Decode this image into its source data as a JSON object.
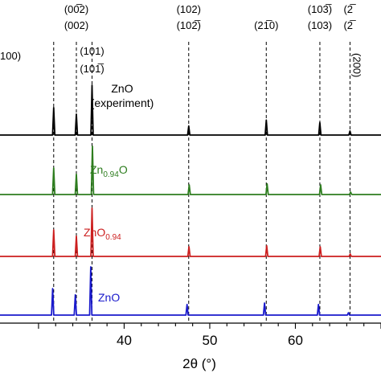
{
  "chart_data": {
    "type": "line",
    "xlabel": "2θ (°)",
    "xlim": [
      25.5,
      70
    ],
    "x_ticks": [
      "40",
      "50",
      "60"
    ],
    "reference_lines": [
      31.77,
      34.42,
      36.25,
      47.54,
      56.6,
      62.86,
      66.38
    ],
    "peak_labels": [
      {
        "x": 34.42,
        "lines": [
          "(00̅2)",
          "(002)"
        ]
      },
      {
        "x": 36.25,
        "lines": [
          "(101)",
          "(101̅)"
        ]
      },
      {
        "x": 47.54,
        "lines": [
          "(102)",
          "(102̅)"
        ]
      },
      {
        "x": 56.6,
        "lines": [
          "(21̅0)"
        ]
      },
      {
        "x": 62.86,
        "lines": [
          "(103̅)",
          "(103)"
        ]
      },
      {
        "x": 66.38,
        "lines": [
          "(2̅",
          "(2̅"
        ]
      },
      {
        "x": 31.77,
        "lines": [
          "100)"
        ]
      },
      {
        "x": 66.38,
        "lines": [
          "(200)"
        ]
      }
    ],
    "series": [
      {
        "name": "ZnO (experiment)",
        "label_lines": [
          "ZnO",
          "(experiment)"
        ],
        "color": "#000000",
        "peaks": [
          [
            31.77,
            0.55
          ],
          [
            34.42,
            0.42
          ],
          [
            36.25,
            1.0
          ],
          [
            47.54,
            0.18
          ],
          [
            56.6,
            0.3
          ],
          [
            62.86,
            0.25
          ],
          [
            66.38,
            0.08
          ]
        ]
      },
      {
        "name": "Zn0.94O",
        "label_main": "Zn",
        "label_sub": "0.94",
        "label_tail": "O",
        "color": "#2e7d1f",
        "peaks": [
          [
            31.77,
            0.55
          ],
          [
            34.42,
            0.42
          ],
          [
            36.3,
            1.0
          ],
          [
            47.6,
            0.2
          ],
          [
            56.7,
            0.22
          ],
          [
            62.95,
            0.2
          ],
          [
            66.45,
            0.05
          ]
        ]
      },
      {
        "name": "ZnO0.94",
        "label_main": "ZnO",
        "label_sub": "0.94",
        "label_tail": "",
        "color": "#cc1f1f",
        "peaks": [
          [
            31.77,
            0.55
          ],
          [
            34.42,
            0.42
          ],
          [
            36.25,
            1.0
          ],
          [
            47.57,
            0.2
          ],
          [
            56.65,
            0.22
          ],
          [
            62.9,
            0.2
          ],
          [
            66.4,
            0.05
          ]
        ]
      },
      {
        "name": "ZnO",
        "label_main": "ZnO",
        "label_sub": "",
        "label_tail": "",
        "color": "#1a1acc",
        "peaks": [
          [
            31.65,
            0.55
          ],
          [
            34.3,
            0.42
          ],
          [
            36.1,
            1.0
          ],
          [
            47.35,
            0.22
          ],
          [
            56.4,
            0.25
          ],
          [
            62.7,
            0.22
          ],
          [
            66.2,
            0.05
          ]
        ]
      }
    ]
  }
}
